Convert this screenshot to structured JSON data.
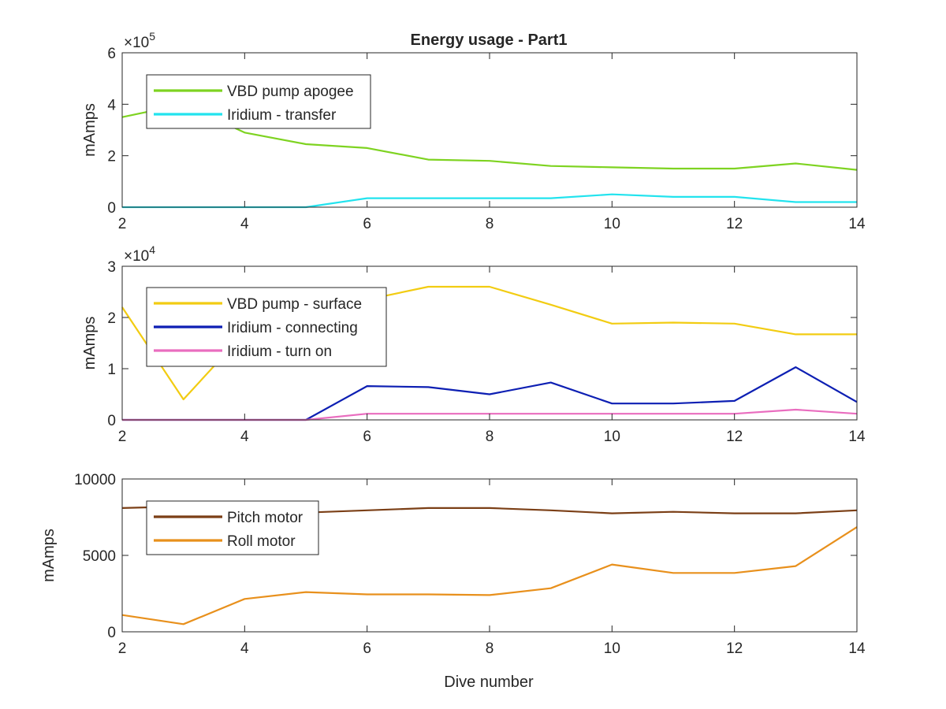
{
  "figure": {
    "title": "Energy usage - Part1",
    "xlabel": "Dive number"
  },
  "chart_data": [
    {
      "type": "line",
      "title": "Energy usage - Part1",
      "xlabel": "",
      "ylabel": "mAmps",
      "exponent_base": "×10",
      "exponent_power": "5",
      "xlim": [
        2,
        14
      ],
      "ylim": [
        0,
        6
      ],
      "x_ticks": [
        2,
        4,
        6,
        8,
        10,
        12,
        14
      ],
      "x_tick_labels": [
        "2",
        "4",
        "6",
        "8",
        "10",
        "12",
        "14"
      ],
      "y_ticks": [
        0,
        2,
        4,
        6
      ],
      "y_tick_labels": [
        "0",
        "2",
        "4",
        "6"
      ],
      "grid": false,
      "legend_position": "top-left",
      "x": [
        2,
        3,
        4,
        5,
        6,
        7,
        8,
        9,
        10,
        11,
        12,
        13,
        14
      ],
      "series": [
        {
          "name": "VBD pump apogee",
          "color": "#7ed321",
          "values": [
            3.5,
            4.0,
            2.9,
            2.45,
            2.3,
            1.85,
            1.8,
            1.6,
            1.55,
            1.5,
            1.5,
            1.7,
            1.45
          ]
        },
        {
          "name": "Iridium - transfer",
          "color": "#22e3ee",
          "values": [
            0.0,
            0.0,
            0.0,
            0.0,
            0.35,
            0.35,
            0.35,
            0.35,
            0.5,
            0.4,
            0.4,
            0.2,
            0.2
          ]
        }
      ]
    },
    {
      "type": "line",
      "xlabel": "",
      "ylabel": "mAmps",
      "exponent_base": "×10",
      "exponent_power": "4",
      "xlim": [
        2,
        14
      ],
      "ylim": [
        0,
        3
      ],
      "x_ticks": [
        2,
        4,
        6,
        8,
        10,
        12,
        14
      ],
      "x_tick_labels": [
        "2",
        "4",
        "6",
        "8",
        "10",
        "12",
        "14"
      ],
      "y_ticks": [
        0,
        1,
        2,
        3
      ],
      "y_tick_labels": [
        "0",
        "1",
        "2",
        "3"
      ],
      "grid": false,
      "legend_position": "top-left",
      "x": [
        2,
        3,
        4,
        5,
        6,
        7,
        8,
        9,
        10,
        11,
        12,
        13,
        14
      ],
      "series": [
        {
          "name": "VBD pump - surface",
          "color": "#f2cc12",
          "values": [
            2.2,
            0.4,
            1.7,
            2.3,
            2.35,
            2.6,
            2.6,
            2.25,
            1.88,
            1.9,
            1.88,
            1.67,
            1.67
          ]
        },
        {
          "name": "Iridium - connecting",
          "color": "#0d1fb3",
          "values": [
            0.0,
            0.0,
            0.0,
            0.0,
            0.66,
            0.64,
            0.5,
            0.73,
            0.32,
            0.32,
            0.37,
            1.03,
            0.35
          ]
        },
        {
          "name": "Iridium - turn on",
          "color": "#e96dbf",
          "values": [
            0.0,
            0.0,
            0.0,
            0.0,
            0.12,
            0.12,
            0.12,
            0.12,
            0.12,
            0.12,
            0.12,
            0.2,
            0.12
          ]
        }
      ]
    },
    {
      "type": "line",
      "xlabel": "Dive number",
      "ylabel": "mAmps",
      "xlim": [
        2,
        14
      ],
      "ylim": [
        0,
        10000
      ],
      "x_ticks": [
        2,
        4,
        6,
        8,
        10,
        12,
        14
      ],
      "x_tick_labels": [
        "2",
        "4",
        "6",
        "8",
        "10",
        "12",
        "14"
      ],
      "y_ticks": [
        0,
        5000,
        10000
      ],
      "y_tick_labels": [
        "0",
        "5000",
        "10000"
      ],
      "grid": false,
      "legend_position": "top-left",
      "x": [
        2,
        3,
        4,
        5,
        6,
        7,
        8,
        9,
        10,
        11,
        12,
        13,
        14
      ],
      "series": [
        {
          "name": "Pitch motor",
          "color": "#7b3f16",
          "values": [
            8100,
            8200,
            7800,
            7800,
            7950,
            8100,
            8100,
            7950,
            7750,
            7850,
            7750,
            7750,
            7950
          ]
        },
        {
          "name": "Roll motor",
          "color": "#e8901c",
          "values": [
            1100,
            500,
            2150,
            2600,
            2450,
            2450,
            2400,
            2850,
            4400,
            3850,
            3850,
            4300,
            6850
          ]
        }
      ]
    }
  ]
}
